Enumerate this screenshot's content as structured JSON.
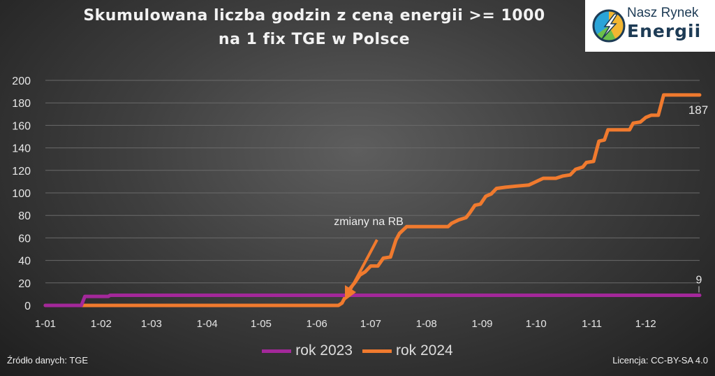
{
  "chart_data": {
    "type": "line",
    "title": "Skumulowana liczba godzin z ceną energii >= 1000 na 1 fix TGE w Polsce",
    "title_lines": [
      "Skumulowana liczba godzin z ceną energii >= 1000",
      "na 1 fix TGE w Polsce"
    ],
    "xlabel": "",
    "ylabel": "",
    "ylim": [
      0,
      200
    ],
    "yticks": [
      0,
      20,
      40,
      60,
      80,
      100,
      120,
      140,
      160,
      180,
      200
    ],
    "xticks": [
      "1-01",
      "1-02",
      "1-03",
      "1-04",
      "1-05",
      "1-06",
      "1-07",
      "1-08",
      "1-09",
      "1-10",
      "1-11",
      "1-12"
    ],
    "grid": "horizontal",
    "legend": "bottom",
    "series": [
      {
        "name": "rok 2023",
        "color": "#a3289a",
        "end_label": "9",
        "points": [
          [
            "01-01",
            0
          ],
          [
            "01-21",
            0
          ],
          [
            "01-23",
            8
          ],
          [
            "02-05",
            8
          ],
          [
            "02-06",
            9
          ],
          [
            "12-31",
            9
          ]
        ]
      },
      {
        "name": "rok 2024",
        "color": "#f07a2e",
        "end_label": "187",
        "points": [
          [
            "01-01",
            0
          ],
          [
            "06-13",
            0
          ],
          [
            "06-15",
            2
          ],
          [
            "06-17",
            8
          ],
          [
            "06-19",
            14
          ],
          [
            "06-22",
            20
          ],
          [
            "06-25",
            27
          ],
          [
            "06-28",
            30
          ],
          [
            "07-01",
            35
          ],
          [
            "07-05",
            35
          ],
          [
            "07-08",
            42
          ],
          [
            "07-12",
            43
          ],
          [
            "07-15",
            58
          ],
          [
            "07-17",
            64
          ],
          [
            "07-21",
            70
          ],
          [
            "08-13",
            70
          ],
          [
            "08-15",
            73
          ],
          [
            "08-19",
            76
          ],
          [
            "08-23",
            78
          ],
          [
            "08-25",
            82
          ],
          [
            "08-28",
            89
          ],
          [
            "08-31",
            90
          ],
          [
            "09-03",
            97
          ],
          [
            "09-06",
            99
          ],
          [
            "09-09",
            104
          ],
          [
            "09-14",
            105
          ],
          [
            "09-20",
            106
          ],
          [
            "09-27",
            107
          ],
          [
            "10-01",
            110
          ],
          [
            "10-05",
            113
          ],
          [
            "10-12",
            113
          ],
          [
            "10-16",
            115
          ],
          [
            "10-20",
            116
          ],
          [
            "10-23",
            121
          ],
          [
            "10-27",
            123
          ],
          [
            "10-29",
            127
          ],
          [
            "11-02",
            128
          ],
          [
            "11-05",
            146
          ],
          [
            "11-08",
            147
          ],
          [
            "11-10",
            156
          ],
          [
            "11-22",
            156
          ],
          [
            "11-24",
            162
          ],
          [
            "11-28",
            163
          ],
          [
            "12-01",
            167
          ],
          [
            "12-04",
            169
          ],
          [
            "12-08",
            169
          ],
          [
            "12-11",
            187
          ],
          [
            "12-31",
            187
          ]
        ]
      }
    ],
    "annotation": "zmiany na RB"
  },
  "logo": {
    "line1": "Nasz Rynek",
    "line2": "Energii"
  },
  "footer": {
    "source": "Źródło danych: TGE",
    "license": "Licencja: CC-BY-SA 4.0"
  }
}
